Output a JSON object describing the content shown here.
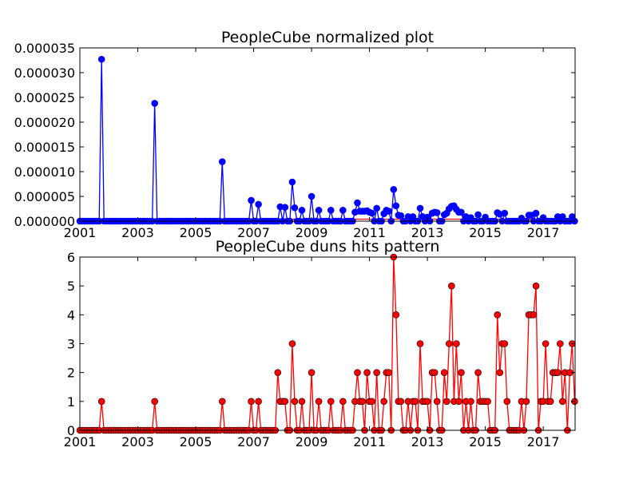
{
  "chart_data": [
    {
      "type": "line",
      "title": "PeopleCube normalized plot",
      "xlabel": "",
      "ylabel": "",
      "xlim": [
        2001,
        2018.1
      ],
      "ylim": [
        0,
        3.5e-05
      ],
      "grid": false,
      "x_ticks": [
        "2001",
        "2003",
        "2005",
        "2007",
        "2009",
        "2011",
        "2013",
        "2015",
        "2017"
      ],
      "y_ticks": [
        "0.000000",
        "0.000005",
        "0.000010",
        "0.000015",
        "0.000020",
        "0.000025",
        "0.000030",
        "0.000035"
      ],
      "colors": {
        "line": "#0000ff",
        "marker": "#0000ff",
        "reference": "#ff0000"
      },
      "series": [
        {
          "peaks": [
            [
              2001.75,
              3.27e-05
            ],
            [
              2003.58,
              2.38e-05
            ],
            [
              2005.92,
              1.2e-05
            ],
            [
              2006.92,
              4.2e-06
            ],
            [
              2007.17,
              3.4e-06
            ],
            [
              2007.92,
              2.9e-06
            ],
            [
              2008.08,
              2.8e-06
            ],
            [
              2008.33,
              7.9e-06
            ],
            [
              2008.42,
              2.7e-06
            ],
            [
              2008.67,
              2.2e-06
            ],
            [
              2009.0,
              5e-06
            ],
            [
              2009.25,
              2.2e-06
            ],
            [
              2009.67,
              2.2e-06
            ],
            [
              2010.08,
              2.2e-06
            ],
            [
              2010.5,
              1.8e-06
            ],
            [
              2010.58,
              3.7e-06
            ],
            [
              2010.67,
              2e-06
            ],
            [
              2010.75,
              2e-06
            ],
            [
              2010.83,
              2e-06
            ],
            [
              2010.92,
              2.1e-06
            ],
            [
              2011.0,
              1.8e-06
            ],
            [
              2011.08,
              1.6e-06
            ],
            [
              2011.25,
              2.6e-06
            ],
            [
              2011.5,
              1.5e-06
            ],
            [
              2011.58,
              2.2e-06
            ],
            [
              2011.67,
              2e-06
            ],
            [
              2011.83,
              6.4e-06
            ],
            [
              2011.92,
              3.1e-06
            ],
            [
              2012.0,
              1.2e-06
            ],
            [
              2012.08,
              1.1e-06
            ],
            [
              2012.33,
              9e-07
            ],
            [
              2012.5,
              9e-07
            ],
            [
              2012.75,
              2.6e-06
            ],
            [
              2012.83,
              9e-07
            ],
            [
              2013.0,
              8e-07
            ],
            [
              2013.17,
              1.6e-06
            ],
            [
              2013.25,
              1.8e-06
            ],
            [
              2013.33,
              1.7e-06
            ],
            [
              2013.58,
              1.3e-06
            ],
            [
              2013.67,
              1.6e-06
            ],
            [
              2013.75,
              2.5e-06
            ],
            [
              2013.83,
              3e-06
            ],
            [
              2013.92,
              3.1e-06
            ],
            [
              2014.0,
              2.4e-06
            ],
            [
              2014.08,
              1.8e-06
            ],
            [
              2014.17,
              1.8e-06
            ],
            [
              2014.33,
              9e-07
            ],
            [
              2014.5,
              7e-07
            ],
            [
              2014.75,
              1.3e-06
            ],
            [
              2015.0,
              8e-07
            ],
            [
              2015.42,
              1.7e-06
            ],
            [
              2015.5,
              1.4e-06
            ],
            [
              2015.67,
              1.6e-06
            ],
            [
              2016.25,
              6e-07
            ],
            [
              2016.5,
              1.2e-06
            ],
            [
              2016.58,
              1.2e-06
            ],
            [
              2016.75,
              1.6e-06
            ],
            [
              2017.0,
              7e-07
            ],
            [
              2017.5,
              9e-07
            ],
            [
              2017.67,
              9e-07
            ],
            [
              2018.0,
              9e-07
            ]
          ],
          "baseline": 0,
          "reference_level": 4e-07
        }
      ]
    },
    {
      "type": "line",
      "title": "PeopleCube duns hits pattern",
      "xlabel": "",
      "ylabel": "",
      "xlim": [
        2001,
        2018.1
      ],
      "ylim": [
        0,
        6
      ],
      "grid": false,
      "x_ticks": [
        "2001",
        "2003",
        "2005",
        "2007",
        "2009",
        "2011",
        "2013",
        "2015",
        "2017"
      ],
      "y_ticks": [
        "0",
        "1",
        "2",
        "3",
        "4",
        "5",
        "6"
      ],
      "colors": {
        "line": "#ff0000",
        "marker": "#ff0000"
      },
      "series": [
        {
          "peaks": [
            [
              2001.75,
              1
            ],
            [
              2003.58,
              1
            ],
            [
              2005.92,
              1
            ],
            [
              2006.92,
              1
            ],
            [
              2007.17,
              1
            ],
            [
              2007.83,
              2
            ],
            [
              2007.92,
              1
            ],
            [
              2008.0,
              1
            ],
            [
              2008.08,
              1
            ],
            [
              2008.33,
              3
            ],
            [
              2008.42,
              1
            ],
            [
              2008.67,
              1
            ],
            [
              2009.0,
              2
            ],
            [
              2009.25,
              1
            ],
            [
              2009.67,
              1
            ],
            [
              2010.08,
              1
            ],
            [
              2010.5,
              1
            ],
            [
              2010.58,
              2
            ],
            [
              2010.67,
              1
            ],
            [
              2010.75,
              1
            ],
            [
              2010.92,
              2
            ],
            [
              2011.0,
              1
            ],
            [
              2011.08,
              1
            ],
            [
              2011.25,
              2
            ],
            [
              2011.5,
              1
            ],
            [
              2011.58,
              2
            ],
            [
              2011.67,
              2
            ],
            [
              2011.83,
              6
            ],
            [
              2011.92,
              4
            ],
            [
              2012.0,
              1
            ],
            [
              2012.08,
              1
            ],
            [
              2012.33,
              1
            ],
            [
              2012.5,
              1
            ],
            [
              2012.58,
              1
            ],
            [
              2012.75,
              3
            ],
            [
              2012.83,
              1
            ],
            [
              2012.92,
              1
            ],
            [
              2013.0,
              1
            ],
            [
              2013.17,
              2
            ],
            [
              2013.25,
              2
            ],
            [
              2013.33,
              1
            ],
            [
              2013.58,
              2
            ],
            [
              2013.67,
              1
            ],
            [
              2013.75,
              3
            ],
            [
              2013.83,
              5
            ],
            [
              2013.92,
              1
            ],
            [
              2014.0,
              3
            ],
            [
              2014.08,
              1
            ],
            [
              2014.17,
              2
            ],
            [
              2014.33,
              1
            ],
            [
              2014.5,
              1
            ],
            [
              2014.75,
              2
            ],
            [
              2014.83,
              1
            ],
            [
              2014.92,
              1
            ],
            [
              2015.0,
              1
            ],
            [
              2015.08,
              1
            ],
            [
              2015.42,
              4
            ],
            [
              2015.5,
              2
            ],
            [
              2015.58,
              3
            ],
            [
              2015.67,
              3
            ],
            [
              2015.75,
              1
            ],
            [
              2016.25,
              1
            ],
            [
              2016.42,
              1
            ],
            [
              2016.5,
              4
            ],
            [
              2016.58,
              4
            ],
            [
              2016.67,
              4
            ],
            [
              2016.75,
              5
            ],
            [
              2016.92,
              1
            ],
            [
              2017.0,
              1
            ],
            [
              2017.08,
              3
            ],
            [
              2017.17,
              1
            ],
            [
              2017.25,
              1
            ],
            [
              2017.33,
              2
            ],
            [
              2017.42,
              2
            ],
            [
              2017.5,
              2
            ],
            [
              2017.58,
              3
            ],
            [
              2017.67,
              1
            ],
            [
              2017.75,
              2
            ],
            [
              2017.83,
              0
            ],
            [
              2017.92,
              2
            ],
            [
              2018.0,
              3
            ],
            [
              2018.08,
              1
            ]
          ],
          "baseline": 0
        }
      ]
    }
  ]
}
